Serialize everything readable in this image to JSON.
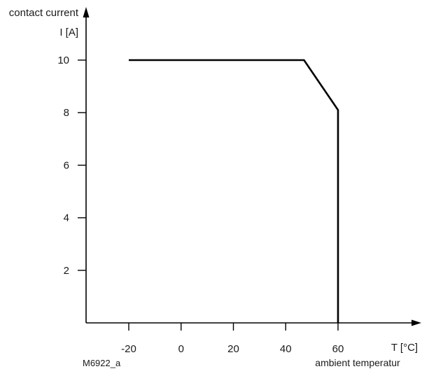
{
  "chart_data": {
    "type": "line",
    "ylabel_line1": "contact current",
    "ylabel_line2": "I [A]",
    "xlabel_unit": "T [°C]",
    "xlabel_text": "ambient temperatur",
    "figure_code": "M6922_a",
    "x_ticks": [
      -20,
      0,
      20,
      40,
      60
    ],
    "x_tick_labels": [
      "-20",
      "0",
      "20",
      "40",
      "60"
    ],
    "y_ticks": [
      2,
      4,
      6,
      8,
      10
    ],
    "y_tick_labels": [
      "2",
      "4",
      "6",
      "8",
      "10"
    ],
    "xlim": [
      -36,
      90
    ],
    "ylim": [
      0,
      11.7
    ],
    "grid": false,
    "legend": "none",
    "series": [
      {
        "color": "#000000",
        "x": [
          -20,
          47,
          60,
          60
        ],
        "y": [
          10,
          10,
          8.1,
          0
        ]
      }
    ]
  }
}
